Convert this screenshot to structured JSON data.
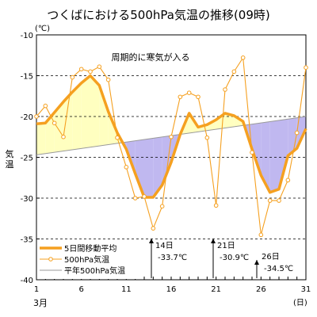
{
  "chart_data": {
    "type": "line",
    "title": "つくばにおける500hPa気温の推移(09時)",
    "ylabel": "気温",
    "y_unit_label": "(℃)",
    "x_unit_label": "(日)",
    "month_label": "3月",
    "xlim": [
      1,
      31
    ],
    "ylim": [
      -40,
      -10
    ],
    "x_ticks": [
      1,
      6,
      11,
      16,
      21,
      26,
      31
    ],
    "y_ticks": [
      -10,
      -15,
      -20,
      -25,
      -30,
      -35,
      -40
    ],
    "grid": "horizontal dashed",
    "legend_position": "bottom-left",
    "series": [
      {
        "name": "5日間移動平均",
        "color": "#f5a020",
        "style": "thick line",
        "x": [
          1,
          2,
          3,
          4,
          5,
          6,
          7,
          8,
          9,
          10,
          11,
          12,
          13,
          14,
          15,
          16,
          17,
          18,
          19,
          20,
          21,
          22,
          23,
          24,
          25,
          26,
          27,
          28,
          29,
          30,
          31
        ],
        "values": [
          -20.9,
          -20.8,
          -19.5,
          -18.2,
          -17,
          -15.9,
          -15,
          -16.2,
          -19.4,
          -22,
          -24,
          -27,
          -29.9,
          -29.9,
          -28.4,
          -25.6,
          -22.2,
          -19.6,
          -21.3,
          -21,
          -20.4,
          -19.6,
          -19.9,
          -20.6,
          -24,
          -27.2,
          -29.3,
          -28.9,
          -24.8,
          -23.9,
          -21.5
        ]
      },
      {
        "name": "500hPa気温",
        "color": "#f5a020",
        "style": "thin line with open circle markers",
        "x": [
          1,
          2,
          3,
          4,
          5,
          6,
          7,
          8,
          9,
          10,
          11,
          12,
          13,
          14,
          15,
          16,
          17,
          18,
          19,
          20,
          21,
          22,
          23,
          24,
          25,
          26,
          27,
          28,
          29,
          30,
          31
        ],
        "values": [
          -20,
          -18.7,
          -20.8,
          -22.5,
          -15.2,
          -14.2,
          -14.5,
          -13.9,
          -15.5,
          -22.6,
          -26.2,
          -30,
          -29.8,
          -33.7,
          -31,
          -22.5,
          -17.6,
          -17.1,
          -17.6,
          -22.6,
          -30.9,
          -16.7,
          -14.5,
          -12.8,
          -24.4,
          -34.5,
          -30.3,
          -30.3,
          -27.8,
          -22,
          -14
        ]
      },
      {
        "name": "平年500hPa気温",
        "color": "#999999",
        "style": "thin line",
        "x": [
          1,
          31
        ],
        "values": [
          -24.7,
          -20
        ]
      }
    ],
    "fills": [
      {
        "meaning": "above normal",
        "color": "#ffffc0"
      },
      {
        "meaning": "below normal",
        "color": "#c0b8f0"
      }
    ],
    "annotations": [
      {
        "text": "周期的に寒気が入る"
      },
      {
        "day": "14日",
        "value": "-33.7℃",
        "x": 14,
        "y": -33.7
      },
      {
        "day": "21日",
        "value": "-30.9℃",
        "x": 21,
        "y": -30.9
      },
      {
        "day": "26日",
        "value": "-34.5℃",
        "x": 26,
        "y": -34.5
      }
    ]
  }
}
